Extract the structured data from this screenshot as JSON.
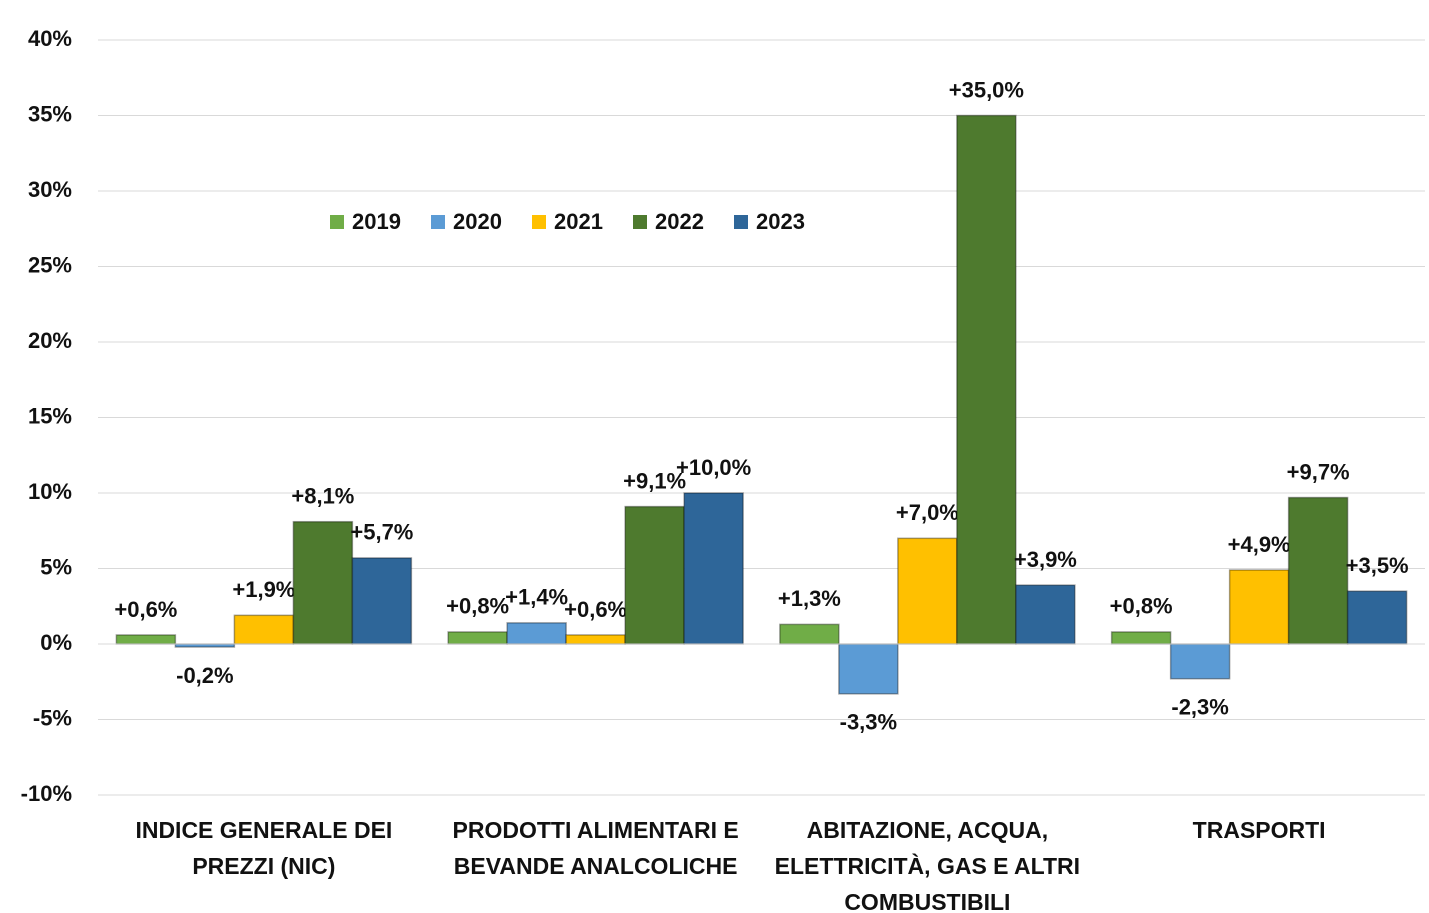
{
  "chart_data": {
    "type": "bar",
    "categories": [
      "INDICE GENERALE DEI PREZZI (NIC)",
      "PRODOTTI ALIMENTARI E BEVANDE ANALCOLICHE",
      "ABITAZIONE, ACQUA, ELETTRICITÀ, GAS E ALTRI COMBUSTIBILI",
      "TRASPORTI"
    ],
    "series": [
      {
        "name": "2019",
        "color": "#70ad47",
        "values": [
          0.6,
          0.8,
          1.3,
          0.8
        ],
        "value_labels": [
          "+0,6%",
          "+0,8%",
          "+1,3%",
          "+0,8%"
        ]
      },
      {
        "name": "2020",
        "color": "#5b9bd5",
        "values": [
          -0.2,
          1.4,
          -3.3,
          -2.3
        ],
        "value_labels": [
          "-0,2%",
          "+1,4%",
          "-3,3%",
          "-2,3%"
        ]
      },
      {
        "name": "2021",
        "color": "#ffc000",
        "values": [
          1.9,
          0.6,
          7.0,
          4.9
        ],
        "value_labels": [
          "+1,9%",
          "+0,6%",
          "+7,0%",
          "+4,9%"
        ]
      },
      {
        "name": "2022",
        "color": "#4e7a2e",
        "values": [
          8.1,
          9.1,
          35.0,
          9.7
        ],
        "value_labels": [
          "+8,1%",
          "+9,1%",
          "+35,0%",
          "+9,7%"
        ]
      },
      {
        "name": "2023",
        "color": "#2e6699",
        "values": [
          5.7,
          10.0,
          3.9,
          3.5
        ],
        "value_labels": [
          "+5,7%",
          "+10,0%",
          "+3,9%",
          "+3,5%"
        ]
      }
    ],
    "ylim": [
      -10,
      40
    ],
    "yticks": [
      {
        "value": -10,
        "label": "-10%"
      },
      {
        "value": -5,
        "label": "-5%"
      },
      {
        "value": 0,
        "label": "0%"
      },
      {
        "value": 5,
        "label": "5%"
      },
      {
        "value": 10,
        "label": "10%"
      },
      {
        "value": 15,
        "label": "15%"
      },
      {
        "value": 20,
        "label": "20%"
      },
      {
        "value": 25,
        "label": "25%"
      },
      {
        "value": 30,
        "label": "30%"
      },
      {
        "value": 35,
        "label": "35%"
      },
      {
        "value": 40,
        "label": "40%"
      }
    ],
    "grid": true,
    "legend": "top"
  }
}
